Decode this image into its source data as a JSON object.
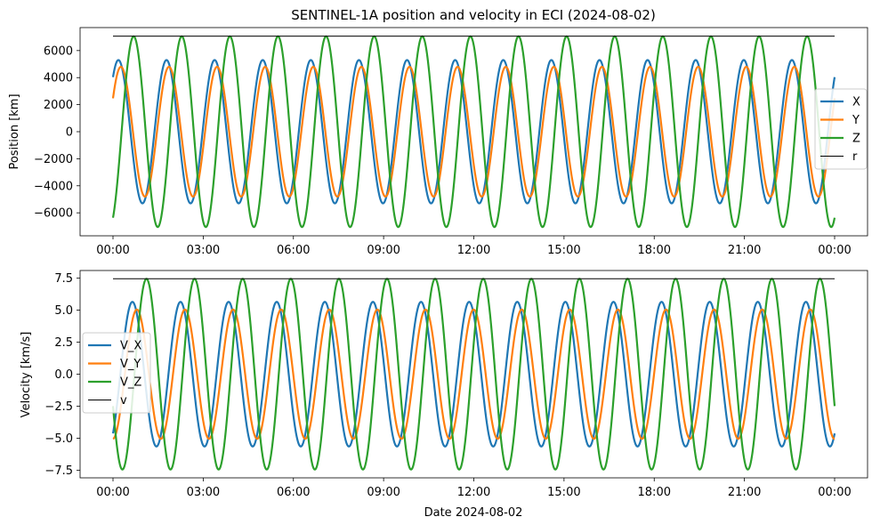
{
  "chart_data": [
    {
      "type": "line",
      "title": "SENTINEL-1A position and velocity in ECI (2024-08-02)",
      "xlabel": "",
      "ylabel": "Position [km]",
      "x_range_hours": [
        0,
        24
      ],
      "x_tick_labels": [
        "00:00",
        "03:00",
        "06:00",
        "09:00",
        "12:00",
        "15:00",
        "18:00",
        "21:00",
        "00:00"
      ],
      "ylim": [
        -7700,
        7700
      ],
      "y_ticks": [
        -6000,
        -4000,
        -2000,
        0,
        2000,
        4000,
        6000
      ],
      "y_tick_labels": [
        "−6000",
        "−4000",
        "−2000",
        "0",
        "2000",
        "4000",
        "6000"
      ],
      "grid": false,
      "legend_position": "right",
      "series": [
        {
          "name": "X",
          "color": "#1f77b4",
          "amplitude": 5300,
          "period_hours": 1.6,
          "phase_rad": 0.865,
          "curve": "sinusoid"
        },
        {
          "name": "Y",
          "color": "#ff7f0e",
          "amplitude": 4800,
          "period_hours": 1.6,
          "phase_rad": 0.54,
          "curve": "sinusoid"
        },
        {
          "name": "Z",
          "color": "#2ca02c",
          "amplitude": 7050,
          "period_hours": 1.6,
          "phase_rad": -1.125,
          "curve": "sinusoid"
        },
        {
          "name": "r",
          "color": "#000000",
          "constant": 7070,
          "curve": "constant"
        }
      ]
    },
    {
      "type": "line",
      "title": "",
      "xlabel": "Date 2024-08-02",
      "ylabel": "Velocity [km/s]",
      "x_range_hours": [
        0,
        24
      ],
      "x_tick_labels": [
        "00:00",
        "03:00",
        "06:00",
        "09:00",
        "12:00",
        "15:00",
        "18:00",
        "21:00",
        "00:00"
      ],
      "ylim": [
        -8.1,
        8.1
      ],
      "y_ticks": [
        -7.5,
        -5.0,
        -2.5,
        0.0,
        2.5,
        5.0,
        7.5
      ],
      "y_tick_labels": [
        "−7.5",
        "−5.0",
        "−2.5",
        "0.0",
        "2.5",
        "5.0",
        "7.5"
      ],
      "grid": false,
      "legend_position": "center-left",
      "series": [
        {
          "name": "V_X",
          "color": "#1f77b4",
          "amplitude": 5.65,
          "period_hours": 1.6,
          "phase_rad": -0.96,
          "curve": "sinusoid"
        },
        {
          "name": "V_Y",
          "color": "#ff7f0e",
          "amplitude": 5.05,
          "period_hours": 1.6,
          "phase_rad": -1.55,
          "curve": "sinusoid"
        },
        {
          "name": "V_Z",
          "color": "#2ca02c",
          "amplitude": 7.45,
          "period_hours": 1.6,
          "phase_rad": -2.8,
          "curve": "sinusoid"
        },
        {
          "name": "v",
          "color": "#000000",
          "constant": 7.45,
          "curve": "constant"
        }
      ]
    }
  ]
}
